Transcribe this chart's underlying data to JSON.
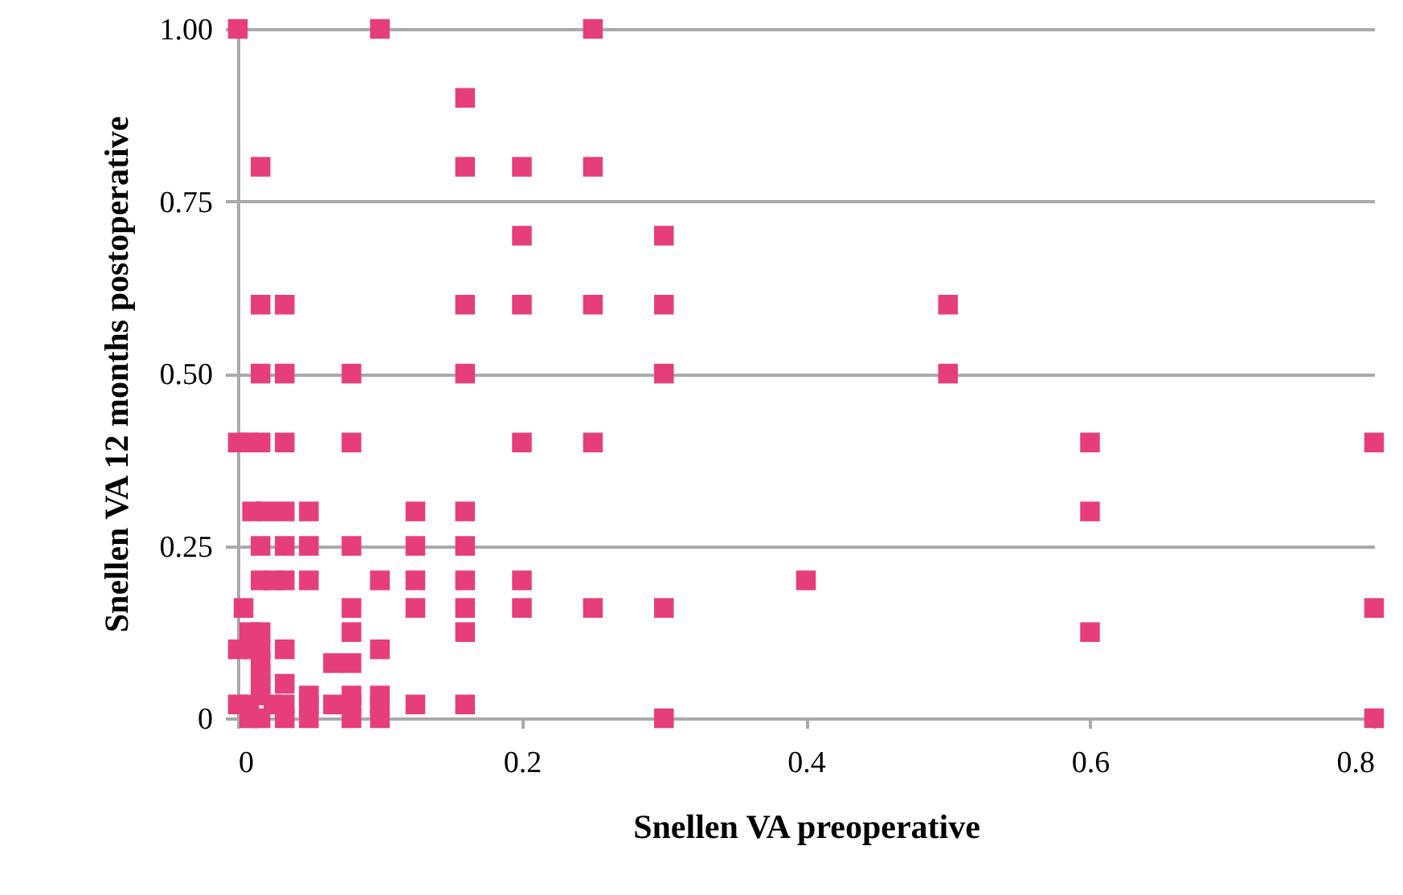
{
  "chart_data": {
    "type": "scatter",
    "xlabel": "Snellen VA preoperative",
    "ylabel": "Snellen VA 12 months postoperative",
    "xlim": [
      0,
      0.8
    ],
    "xticks": [
      0,
      0.2,
      0.4,
      0.6,
      0.8
    ],
    "ylim": [
      0,
      1
    ],
    "yticks": [
      0,
      {
        "value": 0.25,
        "label": "0.25"
      },
      {
        "value": 0.5,
        "label": "0.50"
      },
      {
        "value": 0.75,
        "label": "0.75"
      },
      {
        "value": 1,
        "label": "1.00"
      }
    ],
    "grid": "y",
    "marker": "square",
    "series": [
      {
        "color": "#e63e7c",
        "x": [
          0,
          0.1,
          0.25,
          0.16,
          0.016,
          0.16,
          0.2,
          0.25,
          0.2,
          0.3,
          0.016,
          0.033,
          0.16,
          0.2,
          0.25,
          0.3,
          0.5,
          0.016,
          0.033,
          0.08,
          0.16,
          0.3,
          0.5,
          0,
          0.008,
          0.016,
          0.033,
          0.08,
          0.2,
          0.25,
          0.6,
          0.8,
          0.01,
          0.02,
          0.033,
          0.05,
          0.125,
          0.16,
          0.6,
          0.016,
          0.033,
          0.05,
          0.08,
          0.125,
          0.16,
          0.016,
          0.025,
          0.033,
          0.05,
          0.1,
          0.125,
          0.16,
          0.2,
          0.4,
          0.004,
          0.08,
          0.125,
          0.16,
          0.2,
          0.25,
          0.3,
          0.8,
          0.008,
          0.016,
          0.08,
          0.16,
          0.6,
          0,
          0.01,
          0.016,
          0.033,
          0.1,
          0.016,
          0.067,
          0.08,
          0.016,
          0.033,
          0.016,
          0,
          0.008,
          0.025,
          0.033,
          0.05,
          0.067,
          0.08,
          0.1,
          0.125,
          0.16,
          0.008,
          0.016,
          0.033,
          0.05,
          0.08,
          0.1,
          0.3,
          0.8,
          0.016,
          0.05,
          0.1,
          0.08
        ],
        "values": [
          1,
          1,
          1,
          0.9,
          0.8,
          0.8,
          0.8,
          0.8,
          0.7,
          0.7,
          0.6,
          0.6,
          0.6,
          0.6,
          0.6,
          0.6,
          0.6,
          0.5,
          0.5,
          0.5,
          0.5,
          0.5,
          0.5,
          0.4,
          0.4,
          0.4,
          0.4,
          0.4,
          0.4,
          0.4,
          0.4,
          0.4,
          0.3,
          0.3,
          0.3,
          0.3,
          0.3,
          0.3,
          0.3,
          0.25,
          0.25,
          0.25,
          0.25,
          0.25,
          0.25,
          0.2,
          0.2,
          0.2,
          0.2,
          0.2,
          0.2,
          0.2,
          0.2,
          0.2,
          0.16,
          0.16,
          0.16,
          0.16,
          0.16,
          0.16,
          0.16,
          0.16,
          0.125,
          0.125,
          0.125,
          0.125,
          0.125,
          0.1,
          0.1,
          0.1,
          0.1,
          0.1,
          0.08,
          0.08,
          0.08,
          0.05,
          0.05,
          0.063,
          0.02,
          0.02,
          0.02,
          0.02,
          0.02,
          0.02,
          0.02,
          0.02,
          0.02,
          0.02,
          0,
          0,
          0,
          0,
          0,
          0,
          0,
          0,
          0.033,
          0.033,
          0.033,
          0.033
        ]
      }
    ]
  }
}
